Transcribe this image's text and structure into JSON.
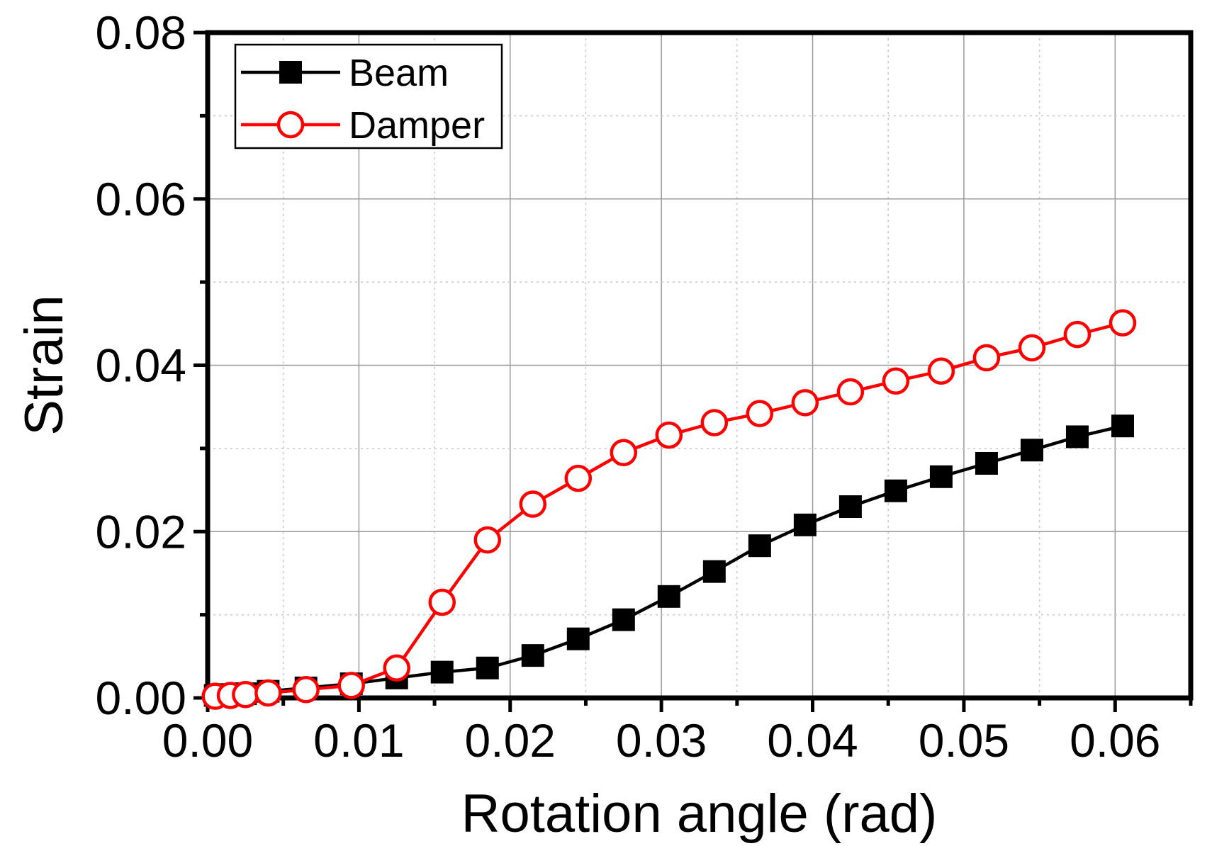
{
  "chart_data": {
    "type": "line",
    "xlabel": "Rotation angle (rad)",
    "ylabel": "Strain",
    "xlim": [
      0.0,
      0.065
    ],
    "ylim": [
      0.0,
      0.08
    ],
    "xticks": [
      0.0,
      0.01,
      0.02,
      0.03,
      0.04,
      0.05,
      0.06
    ],
    "xtick_labels": [
      "0.00",
      "0.01",
      "0.02",
      "0.03",
      "0.04",
      "0.05",
      "0.06"
    ],
    "yticks": [
      0.0,
      0.02,
      0.04,
      0.06,
      0.08
    ],
    "ytick_labels": [
      "0.00",
      "0.02",
      "0.04",
      "0.06",
      "0.08"
    ],
    "grid": true,
    "legend_position": "top-left",
    "series": [
      {
        "name": "Beam",
        "color": "#000000",
        "marker": "filled-square",
        "x": [
          0.0005,
          0.0015,
          0.0025,
          0.004,
          0.0065,
          0.0095,
          0.0125,
          0.0155,
          0.0185,
          0.0215,
          0.0245,
          0.0275,
          0.0305,
          0.0335,
          0.0365,
          0.0395,
          0.0425,
          0.0455,
          0.0485,
          0.0515,
          0.0545,
          0.0575,
          0.0605
        ],
        "y": [
          0.0003,
          0.0004,
          0.0005,
          0.0008,
          0.0012,
          0.0017,
          0.0024,
          0.0031,
          0.0036,
          0.0051,
          0.0071,
          0.0094,
          0.0122,
          0.0152,
          0.0183,
          0.0208,
          0.023,
          0.0249,
          0.0266,
          0.0282,
          0.0298,
          0.0314,
          0.0327
        ]
      },
      {
        "name": "Damper",
        "color": "#ff0000",
        "marker": "open-circle",
        "x": [
          0.0005,
          0.0015,
          0.0025,
          0.004,
          0.0065,
          0.0095,
          0.0125,
          0.0155,
          0.0185,
          0.0215,
          0.0245,
          0.0275,
          0.0305,
          0.0335,
          0.0365,
          0.0395,
          0.0425,
          0.0455,
          0.0485,
          0.0515,
          0.0545,
          0.0575,
          0.0605
        ],
        "y": [
          0.0002,
          0.0003,
          0.0004,
          0.0006,
          0.001,
          0.0015,
          0.0036,
          0.0115,
          0.019,
          0.0233,
          0.0264,
          0.0295,
          0.0316,
          0.0331,
          0.0342,
          0.0355,
          0.0368,
          0.0381,
          0.0393,
          0.0409,
          0.0421,
          0.0437,
          0.0451
        ]
      }
    ]
  }
}
